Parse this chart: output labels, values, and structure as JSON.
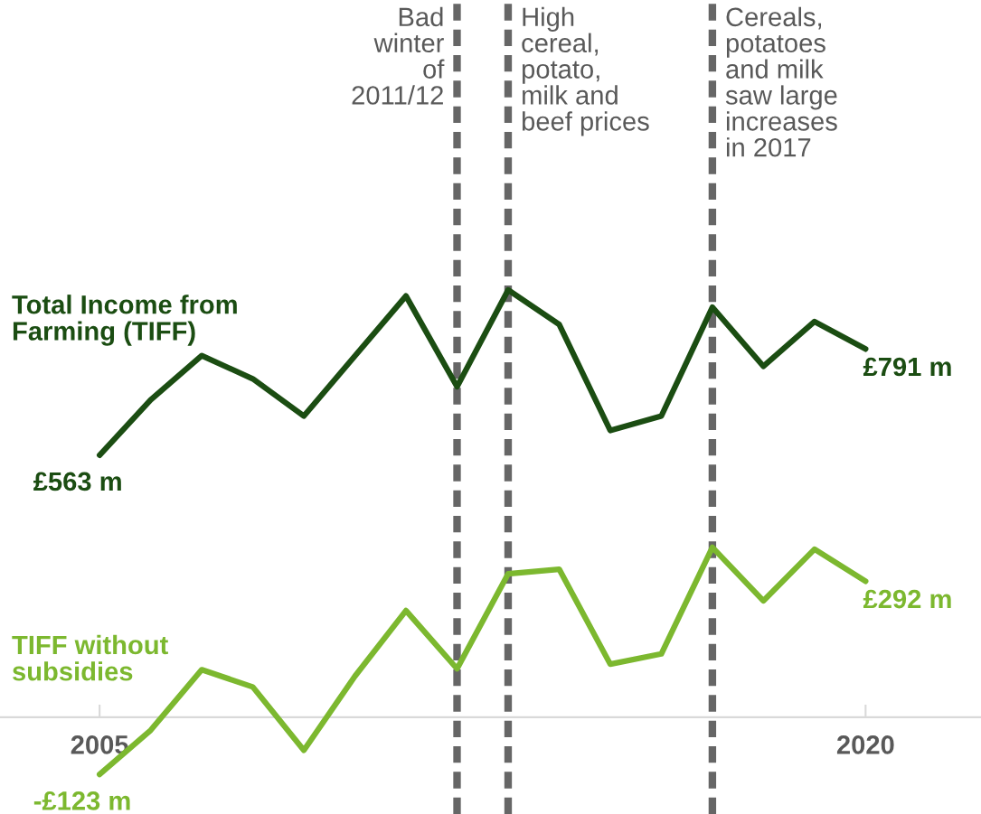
{
  "chart_data": {
    "type": "line",
    "x": [
      2005,
      2006,
      2007,
      2008,
      2009,
      2010,
      2011,
      2012,
      2013,
      2014,
      2015,
      2016,
      2017,
      2018,
      2019,
      2020
    ],
    "series": [
      {
        "name": "Total Income from Farming (TIFF)",
        "color": "#1b4d12",
        "values": [
          563,
          682,
          777,
          727,
          647,
          776,
          905,
          710,
          918,
          844,
          616,
          647,
          881,
          754,
          850,
          791
        ],
        "value_labels": [
          "£563 m",
          null,
          null,
          null,
          null,
          null,
          null,
          null,
          null,
          null,
          null,
          null,
          null,
          null,
          null,
          "£791 m"
        ]
      },
      {
        "name": "TIFF without subsidies",
        "color": "#7cb82f",
        "values": [
          -123,
          -28,
          102,
          65,
          -71,
          88,
          229,
          104,
          308,
          318,
          114,
          136,
          365,
          250,
          361,
          292
        ],
        "value_labels": [
          "-£123 m",
          null,
          null,
          null,
          null,
          null,
          null,
          null,
          null,
          null,
          null,
          null,
          null,
          null,
          null,
          "£292 m"
        ]
      }
    ],
    "xlim": [
      2003.05,
      2022.26
    ],
    "ylim": [
      -208,
      1541
    ],
    "xticks": [
      2005,
      2020
    ],
    "tick_labels": "x",
    "legend": false,
    "grid": false,
    "ref_lines": [
      {
        "axis": "x",
        "value": 2012,
        "label": "Bad\nwinter\nof\n2011/12",
        "color": "#666666",
        "line_style": "dashed"
      },
      {
        "axis": "x",
        "value": 2013,
        "label": "High\ncereal,\npotato,\nmilk and\nbeef prices",
        "color": "#666666",
        "line_style": "dashed"
      },
      {
        "axis": "x",
        "value": 2017,
        "label": "Cereals,\npotatoes\nand milk\nsaw large\nincreases\nin 2017",
        "color": "#666666",
        "line_style": "dashed"
      }
    ]
  }
}
